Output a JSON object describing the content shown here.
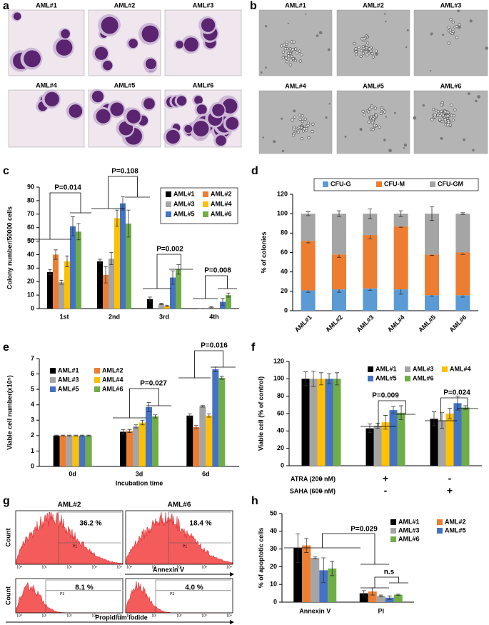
{
  "panel_a": {
    "panel": "a",
    "labels": [
      "AML#1",
      "AML#2",
      "AML#3",
      "AML#4",
      "AML#5",
      "AML#6"
    ]
  },
  "panel_b": {
    "panel": "b",
    "labels": [
      "AML#1",
      "AML#2",
      "AML#3",
      "AML#4",
      "AML#5",
      "AML#6"
    ]
  },
  "panel_g": {
    "panel": "g",
    "samples": [
      "AML#2",
      "AML#6"
    ],
    "y_label": "Count",
    "x_labels": [
      "Annexin V",
      "Propidium iodide"
    ],
    "percentages": [
      [
        "36.2 %",
        "18.4 %"
      ],
      [
        "8.1 %",
        "4.0 %"
      ]
    ],
    "gates": [
      [
        "P1",
        "P1"
      ],
      [
        "P3",
        "P3"
      ]
    ],
    "axis_ticks": [
      "10⁰",
      "10¹",
      "10²",
      "10³",
      "10⁴"
    ]
  },
  "chart_data": [
    {
      "panel": "c",
      "type": "bar",
      "y_label": "Colony number/50000 cells",
      "categories": [
        "1st",
        "2nd",
        "3rd",
        "4th"
      ],
      "series": [
        {
          "name": "AML#1",
          "color": "#000000",
          "values": [
            27,
            35,
            7,
            0
          ],
          "errors": [
            2,
            1.5,
            1.5,
            0
          ]
        },
        {
          "name": "AML#2",
          "color": "#ed7d31",
          "values": [
            40,
            25,
            0,
            0
          ],
          "errors": [
            3.5,
            6,
            0,
            0
          ]
        },
        {
          "name": "AML#3",
          "color": "#a5a5a5",
          "values": [
            19.5,
            37,
            3.5,
            1
          ],
          "errors": [
            1.5,
            4.5,
            0.5,
            0.5
          ]
        },
        {
          "name": "AML#4",
          "color": "#ffc000",
          "values": [
            35,
            67,
            2,
            0
          ],
          "errors": [
            4,
            6,
            0.5,
            0
          ]
        },
        {
          "name": "AML#5",
          "color": "#4472c4",
          "values": [
            61,
            78,
            23,
            5
          ],
          "errors": [
            7,
            5,
            5,
            2.5
          ]
        },
        {
          "name": "AML#6",
          "color": "#70ad47",
          "values": [
            57,
            63,
            29,
            10
          ],
          "errors": [
            6,
            10,
            3.5,
            1.5
          ]
        }
      ],
      "ylim": [
        0,
        90
      ],
      "yticks": [
        0,
        10,
        20,
        30,
        40,
        50,
        60,
        70,
        80,
        90
      ],
      "annotations": [
        "P=0.014",
        "P=0.108",
        "P=0.002",
        "P=0.008"
      ]
    },
    {
      "panel": "d",
      "type": "bar",
      "stacked": true,
      "y_label": "% of colonies",
      "categories": [
        "AML#1",
        "AML#2",
        "AML#3",
        "AML#4",
        "AML#5",
        "AML#6"
      ],
      "series": [
        {
          "name": "CFU-G",
          "color": "#5b9bd5",
          "values": [
            21,
            22,
            23,
            22,
            16,
            16
          ],
          "errors": [
            2,
            3,
            2,
            5,
            1,
            2
          ]
        },
        {
          "name": "CFU-M",
          "color": "#ed7d31",
          "values": [
            51,
            36,
            55,
            65,
            42,
            44
          ],
          "errors": [
            2,
            3,
            4,
            1,
            1,
            2
          ]
        },
        {
          "name": "CFU-GM",
          "color": "#a5a5a5",
          "values": [
            28,
            42,
            22,
            13,
            42,
            40
          ],
          "errors": [
            2,
            3,
            5,
            3,
            7,
            1
          ]
        }
      ],
      "ylim": [
        0,
        120
      ],
      "yticks": [
        0,
        20,
        40,
        60,
        80,
        100,
        120
      ]
    },
    {
      "panel": "e",
      "type": "bar",
      "y_label": "Viable cell number(x10⁵)",
      "x_label": "Incubation time",
      "categories": [
        "0d",
        "3d",
        "6d"
      ],
      "series": [
        {
          "name": "AML#1",
          "color": "#000000",
          "values": [
            2,
            2.25,
            3.3
          ],
          "errors": [
            0.03,
            0.15,
            0.1
          ]
        },
        {
          "name": "AML#2",
          "color": "#ed7d31",
          "values": [
            2,
            2.3,
            2.55
          ],
          "errors": [
            0.03,
            0.1,
            0.1
          ]
        },
        {
          "name": "AML#3",
          "color": "#a5a5a5",
          "values": [
            2,
            2.6,
            3.9
          ],
          "errors": [
            0.03,
            0.1,
            0.05
          ]
        },
        {
          "name": "AML#4",
          "color": "#ffc000",
          "values": [
            2,
            2.85,
            3.3
          ],
          "errors": [
            0.03,
            0.15,
            0.1
          ]
        },
        {
          "name": "AML#5",
          "color": "#4472c4",
          "values": [
            2,
            3.85,
            6.3
          ],
          "errors": [
            0.03,
            0.3,
            0.15
          ]
        },
        {
          "name": "AML#6",
          "color": "#70ad47",
          "values": [
            2,
            3.25,
            5.75
          ],
          "errors": [
            0.03,
            0.1,
            0.1
          ]
        }
      ],
      "ylim": [
        0,
        7
      ],
      "yticks": [
        0,
        1,
        2,
        3,
        4,
        5,
        6,
        7
      ],
      "annotations": [
        "P=0.027",
        "P=0.016"
      ]
    },
    {
      "panel": "f",
      "type": "bar",
      "y_label": "Viable cell (% of control)",
      "categories": [
        null,
        null,
        null
      ],
      "treatments": [
        {
          "label": "ATRA (200 nM)",
          "marks": [
            "-",
            "+",
            "-"
          ]
        },
        {
          "label": "SAHA (600 nM)",
          "marks": [
            "-",
            "-",
            "+"
          ]
        }
      ],
      "series": [
        {
          "name": "AML#1",
          "color": "#000000",
          "values": [
            100,
            43,
            54
          ],
          "errors": [
            8,
            5,
            8
          ]
        },
        {
          "name": "AML#3",
          "color": "#a5a5a5",
          "values": [
            100,
            46,
            52
          ],
          "errors": [
            9,
            3,
            9
          ]
        },
        {
          "name": "AML#4",
          "color": "#ffc000",
          "values": [
            100,
            50,
            60
          ],
          "errors": [
            7,
            8,
            6
          ]
        },
        {
          "name": "AML#5",
          "color": "#4472c4",
          "values": [
            100,
            64,
            72
          ],
          "errors": [
            6,
            4,
            8
          ]
        },
        {
          "name": "AML#6",
          "color": "#70ad47",
          "values": [
            100,
            61,
            67
          ],
          "errors": [
            7,
            8,
            2
          ]
        }
      ],
      "ylim": [
        0,
        120
      ],
      "yticks": [
        0,
        20,
        40,
        60,
        80,
        100,
        120
      ],
      "annotations": [
        "P=0.009",
        "P=0.024"
      ]
    },
    {
      "panel": "h",
      "type": "bar",
      "y_label": "% of apoptotic cells",
      "categories": [
        "Annexin V",
        "PI"
      ],
      "series": [
        {
          "name": "AML#1",
          "color": "#000000",
          "values": [
            30.5,
            5
          ],
          "errors": [
            8,
            1.5
          ]
        },
        {
          "name": "AML#2",
          "color": "#ed7d31",
          "values": [
            32,
            6
          ],
          "errors": [
            4,
            2
          ]
        },
        {
          "name": "AML#3",
          "color": "#a5a5a5",
          "values": [
            25,
            3.5
          ],
          "errors": [
            0.5,
            0.5
          ]
        },
        {
          "name": "AML#5",
          "color": "#4472c4",
          "values": [
            18,
            2.5
          ],
          "errors": [
            7,
            1
          ]
        },
        {
          "name": "AML#6",
          "color": "#70ad47",
          "values": [
            19,
            4.2
          ],
          "errors": [
            4,
            0.3
          ]
        }
      ],
      "ylim": [
        0,
        50
      ],
      "yticks": [
        0,
        10,
        20,
        30,
        40,
        50
      ],
      "annotations": [
        "P=0.029",
        "n.s"
      ]
    }
  ]
}
